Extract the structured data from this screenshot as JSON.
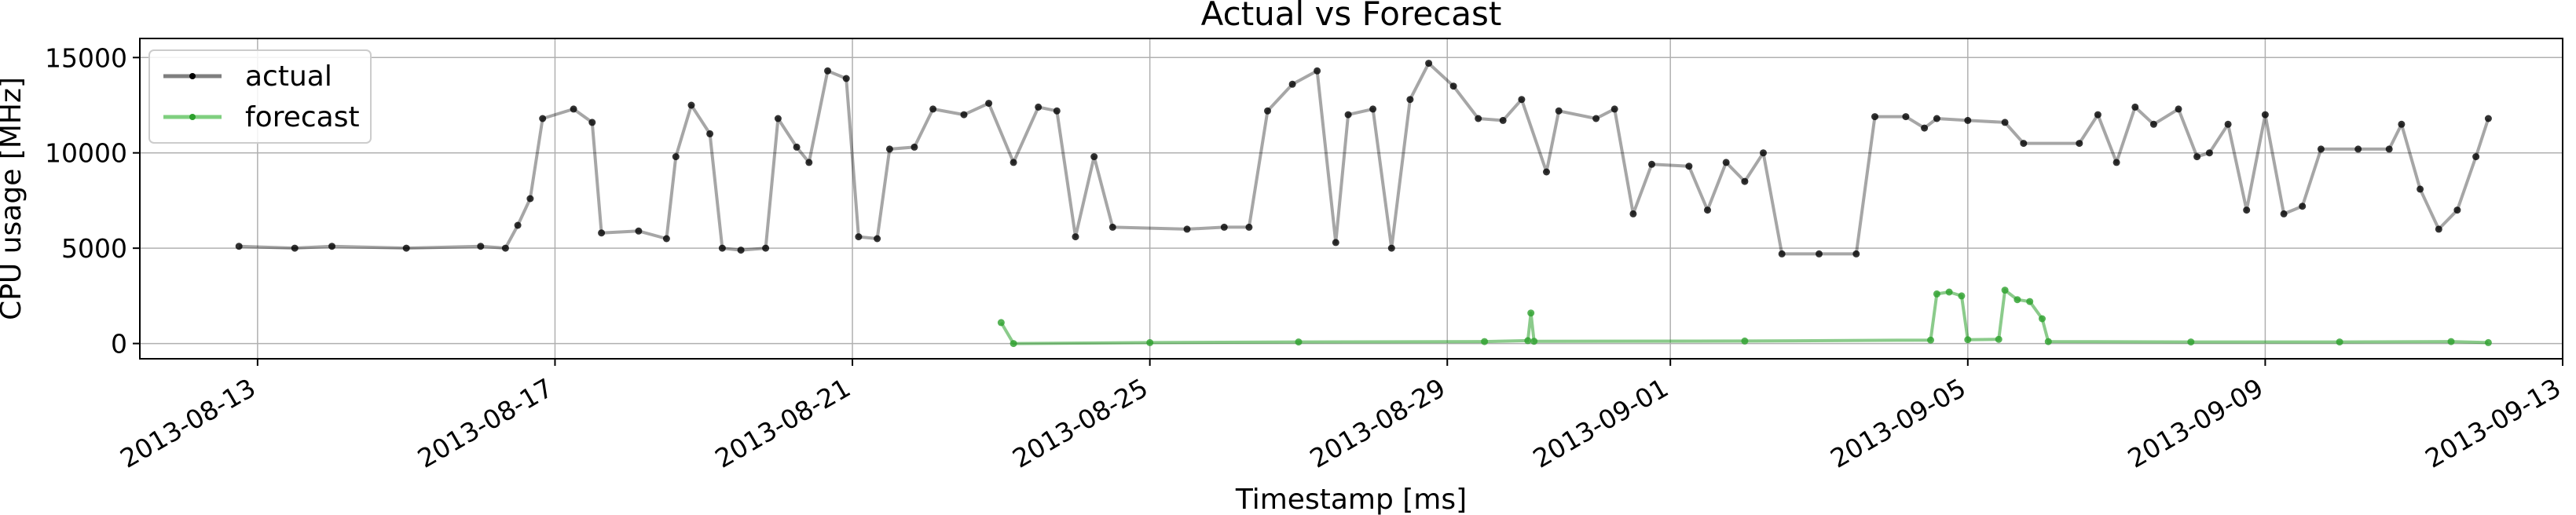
{
  "chart_data": {
    "type": "line",
    "title": "Actual vs Forecast",
    "xlabel": "Timestamp [ms]",
    "ylabel": "CPU usage [MHz]",
    "xlim": [
      "2013-08-11 10:00",
      "2013-09-13 00:00"
    ],
    "ylim": [
      -800,
      16000
    ],
    "x_ticks": [
      "2013-08-13",
      "2013-08-17",
      "2013-08-21",
      "2013-08-25",
      "2013-08-29",
      "2013-09-01",
      "2013-09-05",
      "2013-09-09",
      "2013-09-13"
    ],
    "y_ticks": [
      0,
      5000,
      10000,
      15000
    ],
    "grid": true,
    "legend_position": "top-left",
    "series": [
      {
        "name": "actual",
        "color": "#000000",
        "points": [
          [
            "2013-08-12 18:00",
            5100
          ],
          [
            "2013-08-13 12:00",
            5000
          ],
          [
            "2013-08-14 00:00",
            5100
          ],
          [
            "2013-08-15 00:00",
            5000
          ],
          [
            "2013-08-16 00:00",
            5100
          ],
          [
            "2013-08-16 08:00",
            5000
          ],
          [
            "2013-08-16 12:00",
            6200
          ],
          [
            "2013-08-16 16:00",
            7600
          ],
          [
            "2013-08-16 20:00",
            11800
          ],
          [
            "2013-08-17 06:00",
            12300
          ],
          [
            "2013-08-17 12:00",
            11600
          ],
          [
            "2013-08-17 15:00",
            5800
          ],
          [
            "2013-08-18 03:00",
            5900
          ],
          [
            "2013-08-18 12:00",
            5500
          ],
          [
            "2013-08-18 15:00",
            9800
          ],
          [
            "2013-08-18 20:00",
            12500
          ],
          [
            "2013-08-19 02:00",
            11000
          ],
          [
            "2013-08-19 06:00",
            5000
          ],
          [
            "2013-08-19 12:00",
            4900
          ],
          [
            "2013-08-19 20:00",
            5000
          ],
          [
            "2013-08-20 00:00",
            11800
          ],
          [
            "2013-08-20 06:00",
            10300
          ],
          [
            "2013-08-20 10:00",
            9500
          ],
          [
            "2013-08-20 16:00",
            14300
          ],
          [
            "2013-08-20 22:00",
            13900
          ],
          [
            "2013-08-21 02:00",
            5600
          ],
          [
            "2013-08-21 08:00",
            5500
          ],
          [
            "2013-08-21 12:00",
            10200
          ],
          [
            "2013-08-21 20:00",
            10300
          ],
          [
            "2013-08-22 02:00",
            12300
          ],
          [
            "2013-08-22 12:00",
            12000
          ],
          [
            "2013-08-22 20:00",
            12600
          ],
          [
            "2013-08-23 04:00",
            9500
          ],
          [
            "2013-08-23 12:00",
            12400
          ],
          [
            "2013-08-23 18:00",
            12200
          ],
          [
            "2013-08-24 00:00",
            5600
          ],
          [
            "2013-08-24 06:00",
            9800
          ],
          [
            "2013-08-24 12:00",
            6100
          ],
          [
            "2013-08-25 12:00",
            6000
          ],
          [
            "2013-08-26 00:00",
            6100
          ],
          [
            "2013-08-26 08:00",
            6100
          ],
          [
            "2013-08-26 14:00",
            12200
          ],
          [
            "2013-08-26 22:00",
            13600
          ],
          [
            "2013-08-27 06:00",
            14300
          ],
          [
            "2013-08-27 12:00",
            5300
          ],
          [
            "2013-08-27 16:00",
            12000
          ],
          [
            "2013-08-28 00:00",
            12300
          ],
          [
            "2013-08-28 06:00",
            5000
          ],
          [
            "2013-08-28 12:00",
            12800
          ],
          [
            "2013-08-28 18:00",
            14700
          ],
          [
            "2013-08-29 02:00",
            13500
          ],
          [
            "2013-08-29 10:00",
            11800
          ],
          [
            "2013-08-29 18:00",
            11700
          ],
          [
            "2013-08-30 00:00",
            12800
          ],
          [
            "2013-08-30 08:00",
            9000
          ],
          [
            "2013-08-30 12:00",
            12200
          ],
          [
            "2013-08-31 00:00",
            11800
          ],
          [
            "2013-08-31 06:00",
            12300
          ],
          [
            "2013-08-31 12:00",
            6800
          ],
          [
            "2013-08-31 18:00",
            9400
          ],
          [
            "2013-09-01 06:00",
            9300
          ],
          [
            "2013-09-01 12:00",
            7000
          ],
          [
            "2013-09-01 18:00",
            9500
          ],
          [
            "2013-09-02 00:00",
            8500
          ],
          [
            "2013-09-02 06:00",
            10000
          ],
          [
            "2013-09-02 12:00",
            4700
          ],
          [
            "2013-09-03 00:00",
            4700
          ],
          [
            "2013-09-03 12:00",
            4700
          ],
          [
            "2013-09-03 18:00",
            11900
          ],
          [
            "2013-09-04 04:00",
            11900
          ],
          [
            "2013-09-04 10:00",
            11300
          ],
          [
            "2013-09-04 14:00",
            11800
          ],
          [
            "2013-09-05 00:00",
            11700
          ],
          [
            "2013-09-05 12:00",
            11600
          ],
          [
            "2013-09-05 18:00",
            10500
          ],
          [
            "2013-09-06 12:00",
            10500
          ],
          [
            "2013-09-06 18:00",
            12000
          ],
          [
            "2013-09-07 00:00",
            9500
          ],
          [
            "2013-09-07 06:00",
            12400
          ],
          [
            "2013-09-07 12:00",
            11500
          ],
          [
            "2013-09-07 20:00",
            12300
          ],
          [
            "2013-09-08 02:00",
            9800
          ],
          [
            "2013-09-08 06:00",
            10000
          ],
          [
            "2013-09-08 12:00",
            11500
          ],
          [
            "2013-09-08 18:00",
            7000
          ],
          [
            "2013-09-09 00:00",
            12000
          ],
          [
            "2013-09-09 06:00",
            6800
          ],
          [
            "2013-09-09 12:00",
            7200
          ],
          [
            "2013-09-09 18:00",
            10200
          ],
          [
            "2013-09-10 06:00",
            10200
          ],
          [
            "2013-09-10 16:00",
            10200
          ],
          [
            "2013-09-10 20:00",
            11500
          ],
          [
            "2013-09-11 02:00",
            8100
          ],
          [
            "2013-09-11 08:00",
            6000
          ],
          [
            "2013-09-11 14:00",
            7000
          ],
          [
            "2013-09-11 20:00",
            9800
          ],
          [
            "2013-09-12 00:00",
            11800
          ]
        ]
      },
      {
        "name": "forecast",
        "color": "#2ca02c",
        "points": [
          [
            "2013-08-23 00:00",
            1100
          ],
          [
            "2013-08-23 04:00",
            0
          ],
          [
            "2013-08-25 00:00",
            50
          ],
          [
            "2013-08-27 00:00",
            80
          ],
          [
            "2013-08-29 12:00",
            100
          ],
          [
            "2013-08-30 02:00",
            150
          ],
          [
            "2013-08-30 03:00",
            1600
          ],
          [
            "2013-08-30 04:00",
            120
          ],
          [
            "2013-09-02 00:00",
            130
          ],
          [
            "2013-09-04 12:00",
            180
          ],
          [
            "2013-09-04 14:00",
            2600
          ],
          [
            "2013-09-04 18:00",
            2700
          ],
          [
            "2013-09-04 22:00",
            2500
          ],
          [
            "2013-09-05 00:00",
            200
          ],
          [
            "2013-09-05 10:00",
            220
          ],
          [
            "2013-09-05 12:00",
            2800
          ],
          [
            "2013-09-05 16:00",
            2300
          ],
          [
            "2013-09-05 20:00",
            2200
          ],
          [
            "2013-09-06 00:00",
            1300
          ],
          [
            "2013-09-06 02:00",
            100
          ],
          [
            "2013-09-08 00:00",
            80
          ],
          [
            "2013-09-10 00:00",
            80
          ],
          [
            "2013-09-11 12:00",
            100
          ],
          [
            "2013-09-12 00:00",
            50
          ]
        ]
      }
    ]
  }
}
